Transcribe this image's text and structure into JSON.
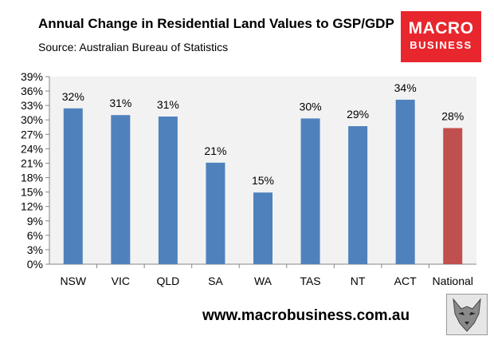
{
  "header": {
    "title": "Annual Change in Residential Land Values to GSP/GDP",
    "source": "Source: Australian Bureau of Statistics"
  },
  "logo": {
    "line1": "MACRO",
    "line2": "BUSINESS"
  },
  "footer": {
    "url": "www.macrobusiness.com.au",
    "emblem_icon": "wolf-head-icon"
  },
  "colors": {
    "state_bar": "#4f81bd",
    "national_bar": "#c0504d",
    "plot_bg": "#f2f2f2",
    "brand_red": "#e8262d"
  },
  "chart_data": {
    "type": "bar",
    "title": "Annual Change in Residential Land Values to GSP/GDP",
    "xlabel": "",
    "ylabel": "",
    "categories": [
      "NSW",
      "VIC",
      "QLD",
      "SA",
      "WA",
      "TAS",
      "NT",
      "ACT",
      "National"
    ],
    "values": [
      32.4,
      31.0,
      30.7,
      21.1,
      14.9,
      30.3,
      28.7,
      34.2,
      28.3
    ],
    "data_labels": [
      "32%",
      "31%",
      "31%",
      "21%",
      "15%",
      "30%",
      "29%",
      "34%",
      "28%"
    ],
    "highlight_category": "National",
    "ylim": [
      0,
      39
    ],
    "yticks": [
      "0%",
      "3%",
      "6%",
      "9%",
      "12%",
      "15%",
      "18%",
      "21%",
      "24%",
      "27%",
      "30%",
      "33%",
      "36%",
      "39%"
    ],
    "grid": false,
    "legend": "none"
  }
}
